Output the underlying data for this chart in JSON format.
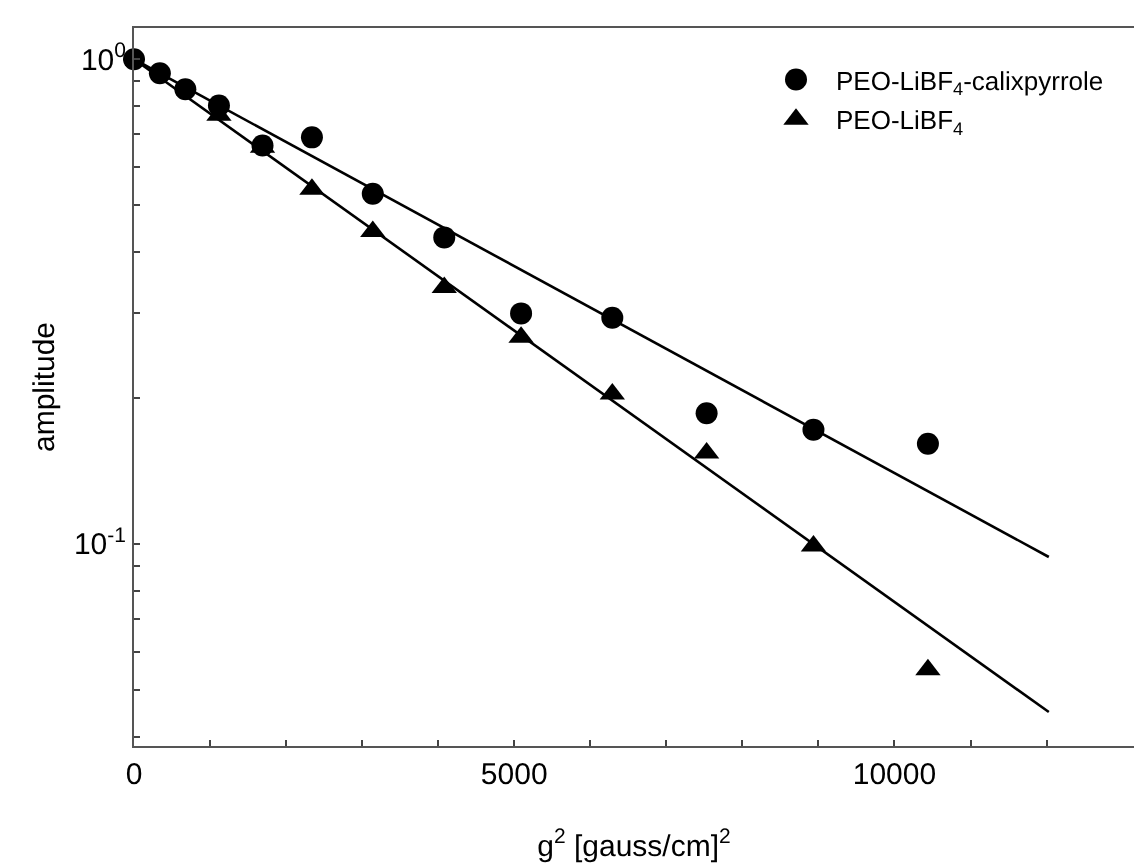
{
  "chart_data": {
    "type": "scatter",
    "xlabel": "g$^{2}$ [gauss/cm]$^{2}$",
    "ylabel": "amplitude",
    "log": "y",
    "grid": false,
    "legend": "top right",
    "xlim": [
      0,
      13150
    ],
    "xticks": [
      0,
      {
        "value": 1000,
        "label": null
      },
      {
        "value": 2000,
        "label": null
      },
      {
        "value": 3000,
        "label": null
      },
      {
        "value": 4000,
        "label": null
      },
      5000,
      {
        "value": 6000,
        "label": null
      },
      {
        "value": 7000,
        "label": null
      },
      {
        "value": 8000,
        "label": null
      },
      {
        "value": 9000,
        "label": null
      },
      10000,
      {
        "value": 11000,
        "label": null
      },
      {
        "value": 12000,
        "label": null
      }
    ],
    "ylim": [
      0.0383,
      1.16
    ],
    "yticks": [
      {
        "value": 0.04,
        "label": null
      },
      {
        "value": 0.05,
        "label": null
      },
      {
        "value": 0.06,
        "label": null
      },
      {
        "value": 0.07,
        "label": null
      },
      {
        "value": 0.08,
        "label": null
      },
      {
        "value": 0.09,
        "label": null
      },
      {
        "value": 0.1,
        "label": "10$^{-1}$"
      },
      {
        "value": 0.2,
        "label": null
      },
      {
        "value": 0.3,
        "label": null
      },
      {
        "value": 0.4,
        "label": null
      },
      {
        "value": 0.5,
        "label": null
      },
      {
        "value": 0.6,
        "label": null
      },
      {
        "value": 0.7,
        "label": null
      },
      {
        "value": 0.8,
        "label": null
      },
      {
        "value": 0.9,
        "label": null
      },
      {
        "value": 1,
        "label": "10$^{0}$"
      }
    ],
    "series": [
      {
        "name": "PEO-LiBF$_{4}$-calixpyrrole",
        "color": "#000000",
        "marker": "circle",
        "x": [
          0,
          340,
          675,
          1117,
          1690,
          2340,
          3140,
          4080,
          5090,
          6290,
          7530,
          8935,
          10440
        ],
        "values": [
          1.0,
          0.936,
          0.867,
          0.803,
          0.664,
          0.69,
          0.528,
          0.429,
          0.299,
          0.293,
          0.186,
          0.172,
          0.161
        ]
      },
      {
        "name": "PEO-LiBF$_{4}$",
        "color": "#000000",
        "marker": "triangle",
        "x": [
          1117,
          1690,
          2340,
          3140,
          4080,
          5090,
          6290,
          7530,
          8935,
          10440
        ],
        "values": [
          0.766,
          0.658,
          0.539,
          0.441,
          0.338,
          0.267,
          0.204,
          0.154,
          0.099,
          0.055
        ]
      },
      {
        "type": "line",
        "color": "#000000",
        "marker": "none",
        "line_style": "solid",
        "x": [
          0,
          12030
        ],
        "values": [
          1.0,
          0.094
        ]
      },
      {
        "type": "line",
        "color": "#000000",
        "marker": "none",
        "line_style": "solid",
        "x": [
          0,
          12030
        ],
        "values": [
          1.0,
          0.045
        ]
      }
    ]
  }
}
